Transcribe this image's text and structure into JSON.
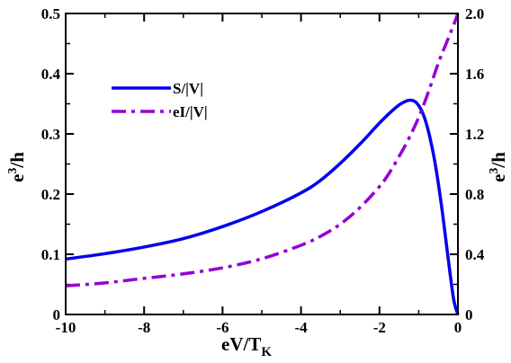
{
  "chart_data": {
    "type": "line",
    "x_axis": {
      "label_main": "eV/T",
      "label_sub": "K",
      "range": [
        -10,
        0
      ],
      "ticks": [
        -10,
        -8,
        -6,
        -4,
        -2,
        0
      ],
      "tick_labels": [
        "-10",
        "-8",
        "-6",
        "-4",
        "-2",
        "0"
      ]
    },
    "y_left": {
      "label_main": "e",
      "label_sup": "3",
      "label_tail": "/h",
      "range": [
        0,
        0.5
      ],
      "ticks": [
        0,
        0.1,
        0.2,
        0.3,
        0.4,
        0.5
      ],
      "tick_labels": [
        "0",
        "0.1",
        "0.2",
        "0.3",
        "0.4",
        "0.5"
      ]
    },
    "y_right": {
      "label_main": "e",
      "label_sup": "3",
      "label_tail": "/h",
      "range": [
        0,
        2.0
      ],
      "ticks": [
        0,
        0.4,
        0.8,
        1.2,
        1.6,
        2.0
      ],
      "tick_labels": [
        "0",
        "0.4",
        "0.8",
        "1.2",
        "1.6",
        "2.0"
      ]
    },
    "legend_position": "upper-left",
    "series": [
      {
        "name": "S/|V|",
        "axis": "left",
        "color": "#0000ee",
        "style": "solid",
        "x": [
          -10,
          -9,
          -8,
          -7,
          -6,
          -5,
          -4,
          -3.5,
          -3,
          -2.5,
          -2,
          -1.75,
          -1.5,
          -1.3,
          -1.2,
          -1.1,
          -1.0,
          -0.9,
          -0.8,
          -0.7,
          -0.6,
          -0.5,
          -0.4,
          -0.3,
          -0.2,
          -0.1,
          0
        ],
        "y": [
          0.092,
          0.101,
          0.112,
          0.126,
          0.146,
          0.171,
          0.202,
          0.223,
          0.251,
          0.283,
          0.318,
          0.334,
          0.348,
          0.355,
          0.356,
          0.354,
          0.347,
          0.335,
          0.316,
          0.29,
          0.258,
          0.218,
          0.172,
          0.12,
          0.068,
          0.022,
          0
        ]
      },
      {
        "name": "eI/|V|",
        "axis": "right",
        "color": "#9400d3",
        "style": "dash-dot",
        "x": [
          -10,
          -9,
          -8,
          -7,
          -6,
          -5,
          -4,
          -3.5,
          -3,
          -2.5,
          -2,
          -1.75,
          -1.5,
          -1.25,
          -1.0,
          -0.75,
          -0.5,
          -0.3,
          -0.1,
          0
        ],
        "y": [
          0.19,
          0.21,
          0.24,
          0.27,
          0.31,
          0.37,
          0.46,
          0.52,
          0.6,
          0.71,
          0.85,
          0.94,
          1.05,
          1.17,
          1.31,
          1.48,
          1.67,
          1.8,
          1.93,
          2.0
        ]
      }
    ]
  }
}
